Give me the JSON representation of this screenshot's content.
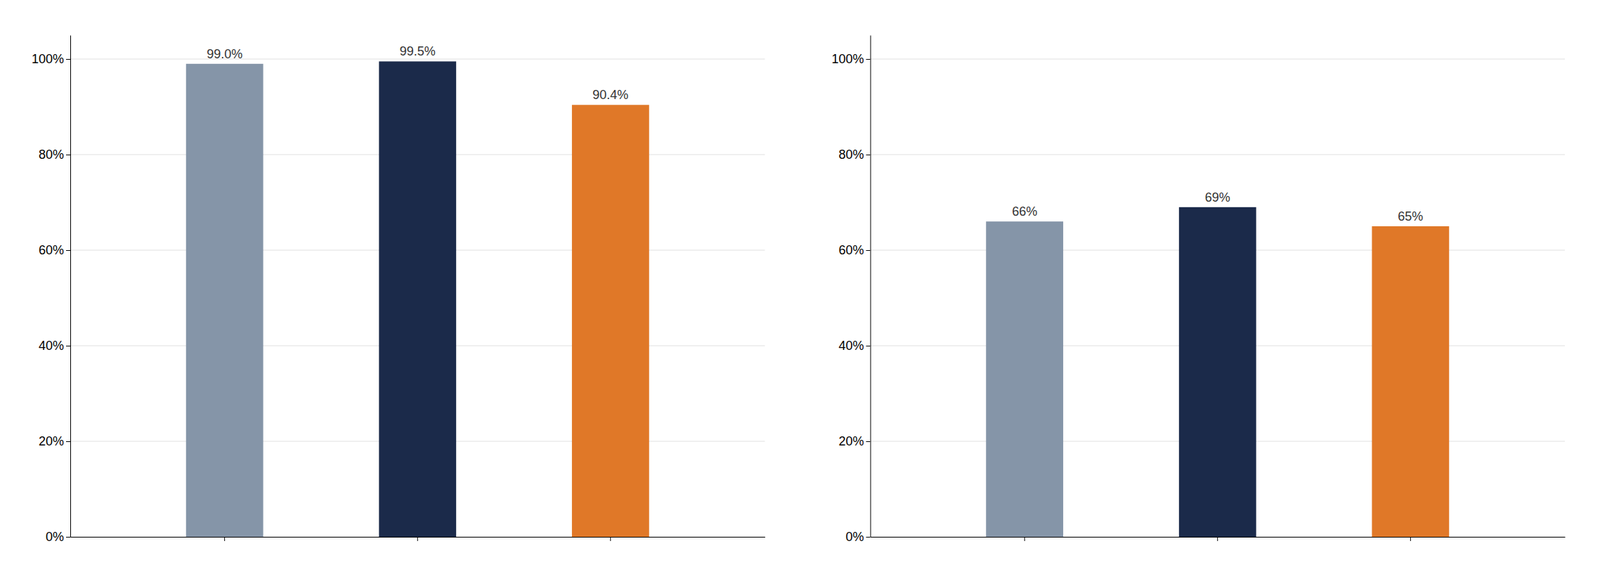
{
  "chart_data": [
    {
      "type": "bar",
      "categories": [
        null,
        null,
        null
      ],
      "values": [
        0.99,
        0.995,
        0.904
      ],
      "value_labels": [
        "99.0%",
        "99.5%",
        "90.4%"
      ],
      "colors": [
        "#8595a8",
        "#1b2a4a",
        "#e07828"
      ],
      "ylim": [
        0,
        1.05
      ],
      "yticks": [
        {
          "value": 0.0,
          "label": "0%"
        },
        {
          "value": 0.2,
          "label": "20%"
        },
        {
          "value": 0.4,
          "label": "40%"
        },
        {
          "value": 0.6,
          "label": "60%"
        },
        {
          "value": 0.8,
          "label": "80%"
        },
        {
          "value": 1.0,
          "label": "100%"
        }
      ],
      "grid": true,
      "data_labels": true,
      "tick_labels": "y"
    },
    {
      "type": "bar",
      "categories": [
        null,
        null,
        null
      ],
      "values": [
        0.66,
        0.69,
        0.65
      ],
      "value_labels": [
        "66%",
        "69%",
        "65%"
      ],
      "colors": [
        "#8595a8",
        "#1b2a4a",
        "#e07828"
      ],
      "ylim": [
        0,
        1.05
      ],
      "yticks": [
        {
          "value": 0.0,
          "label": "0%"
        },
        {
          "value": 0.2,
          "label": "20%"
        },
        {
          "value": 0.4,
          "label": "40%"
        },
        {
          "value": 0.6,
          "label": "60%"
        },
        {
          "value": 0.8,
          "label": "80%"
        },
        {
          "value": 1.0,
          "label": "100%"
        }
      ],
      "grid": true,
      "data_labels": true,
      "tick_labels": "y"
    }
  ]
}
